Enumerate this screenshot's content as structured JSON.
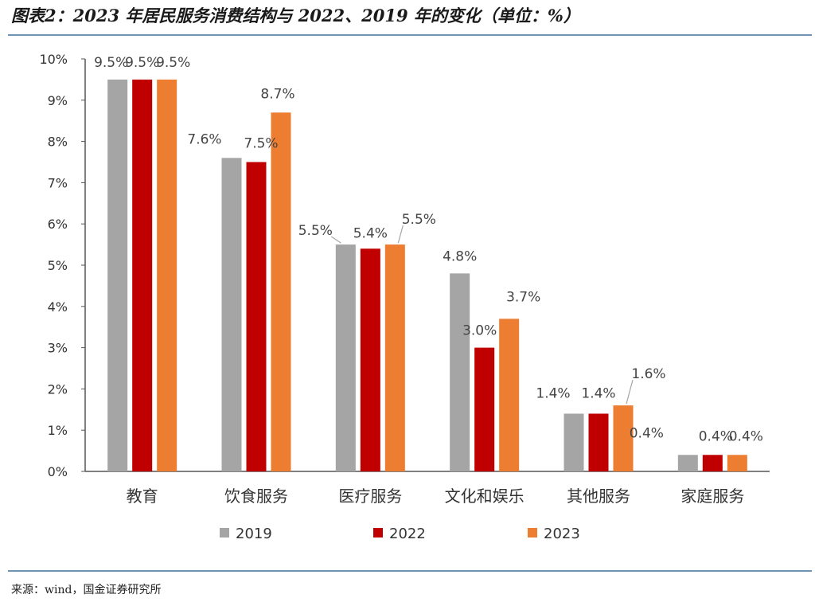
{
  "title": "图表2：2023 年居民服务消费结构与 2022、2019 年的变化（单位：%）",
  "source": "来源：wind，国金证券研究所",
  "chart_data": {
    "type": "bar",
    "categories": [
      "教育",
      "饮食服务",
      "医疗服务",
      "文化和娱乐",
      "其他服务",
      "家庭服务"
    ],
    "series": [
      {
        "name": "2019",
        "color": "#a5a5a5",
        "values": [
          9.5,
          7.6,
          5.5,
          4.8,
          1.4,
          0.4
        ],
        "labels": [
          "9.5%",
          "7.6%",
          "5.5%",
          "4.8%",
          "1.4%",
          "0.4%"
        ]
      },
      {
        "name": "2022",
        "color": "#c00000",
        "values": [
          9.5,
          7.5,
          5.4,
          3.0,
          1.4,
          0.4
        ],
        "labels": [
          "9.5%",
          "7.5%",
          "5.4%",
          "3.0%",
          "1.4%",
          "0.4%"
        ]
      },
      {
        "name": "2023",
        "color": "#ed7d31",
        "values": [
          9.5,
          8.7,
          5.5,
          3.7,
          1.6,
          0.4
        ],
        "labels": [
          "9.5%",
          "8.7%",
          "5.5%",
          "3.7%",
          "1.6%",
          "0.4%"
        ]
      }
    ],
    "ylim": [
      0,
      10
    ],
    "yticks": [
      "0%",
      "1%",
      "2%",
      "3%",
      "4%",
      "5%",
      "6%",
      "7%",
      "8%",
      "9%",
      "10%"
    ],
    "legend_position": "bottom",
    "grid": false
  }
}
